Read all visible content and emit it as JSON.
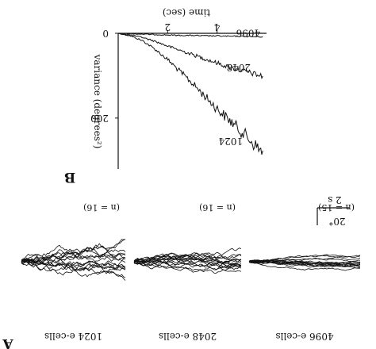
{
  "panel_a_label": "A",
  "panel_b_label": "B",
  "chart_data": [
    {
      "type": "line",
      "panel": "B",
      "title": "",
      "xlabel": "time (sec)",
      "ylabel": "variance (degrees²)",
      "xlim": [
        0,
        6
      ],
      "ylim": [
        0,
        320
      ],
      "x_ticks": [
        {
          "value": 2,
          "label": "2"
        },
        {
          "value": 4,
          "label": "4"
        }
      ],
      "y_ticks": [
        {
          "value": 0,
          "label": "0"
        },
        {
          "value": 200,
          "label": "200"
        }
      ],
      "series": [
        {
          "name": "1024",
          "color": "#111111",
          "x": [
            0,
            0.5,
            1,
            1.5,
            2,
            2.5,
            3,
            3.5,
            4,
            4.5,
            5,
            5.5,
            5.85
          ],
          "y": [
            0,
            6,
            18,
            38,
            62,
            90,
            118,
            148,
            178,
            205,
            232,
            262,
            282
          ]
        },
        {
          "name": "2048",
          "color": "#111111",
          "x": [
            0,
            0.5,
            1,
            1.5,
            2,
            2.5,
            3,
            3.5,
            4,
            4.5,
            5,
            5.5,
            5.85
          ],
          "y": [
            0,
            4,
            10,
            19,
            30,
            40,
            50,
            60,
            70,
            80,
            88,
            96,
            102
          ]
        },
        {
          "name": "4096",
          "color": "#111111",
          "x": [
            0,
            0.5,
            1,
            1.5,
            2,
            2.5,
            3,
            3.5,
            4,
            4.5,
            5,
            5.5,
            5.85
          ],
          "y": [
            0,
            1,
            2,
            3,
            4,
            5,
            5,
            6,
            6,
            7,
            7,
            8,
            8
          ]
        }
      ]
    },
    {
      "type": "line",
      "panel": "A",
      "title": "",
      "scale_bar": {
        "time": "2 s",
        "amplitude": "20°"
      },
      "groups": [
        {
          "label": "1024 e-cells",
          "n_label": "(n = 16)",
          "n": 16,
          "spread": 1.0
        },
        {
          "label": "2048 e-cells",
          "n_label": "(n = 16)",
          "n": 16,
          "spread": 0.7
        },
        {
          "label": "4096 e-cells",
          "n_label": "(n = 15)",
          "n": 15,
          "spread": 0.35
        }
      ]
    }
  ]
}
